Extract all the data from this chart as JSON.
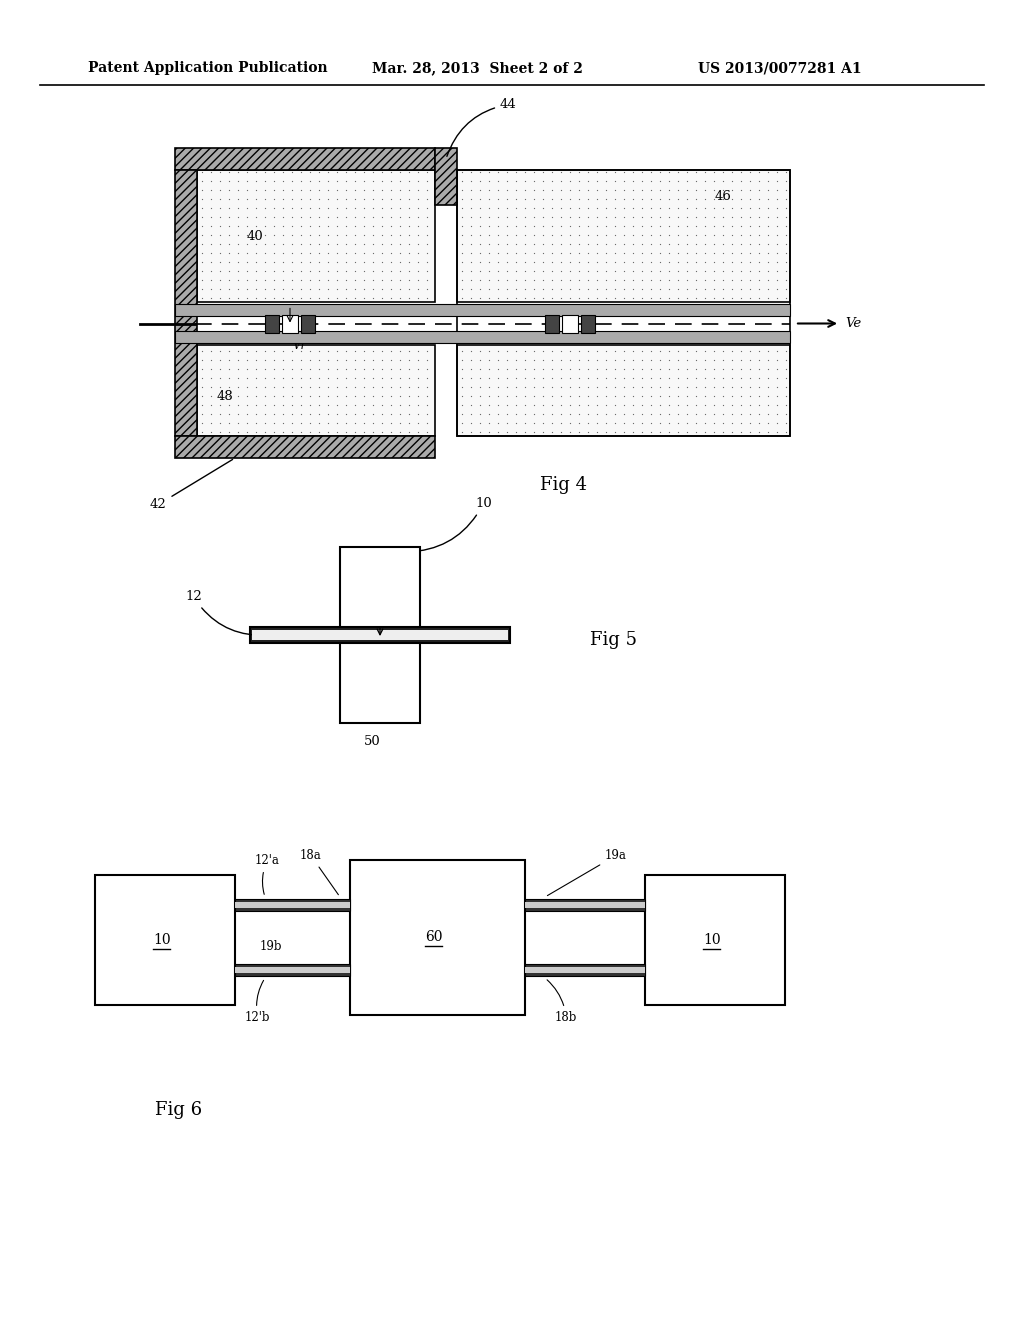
{
  "bg_color": "#ffffff",
  "header_left": "Patent Application Publication",
  "header_mid": "Mar. 28, 2013  Sheet 2 of 2",
  "header_right": "US 2013/0077281 A1",
  "fig4_label": "Fig 4",
  "fig5_label": "Fig 5",
  "fig6_label": "Fig 6",
  "fig4": {
    "hatch_color": "#888888",
    "dot_color": "#777777",
    "dot_bg": "#f5f5f5",
    "wire_thick_color": "#333333",
    "wire_inner_color": "#dddddd",
    "chip_pad_color": "#444444"
  },
  "fig5": {
    "wire_outer": "#111111",
    "wire_inner": "#eeeeee",
    "chip_color": "#ffffff"
  },
  "fig6": {
    "wire_outer": "#111111",
    "wire_inner": "#dddddd",
    "chip_color": "#ffffff"
  }
}
